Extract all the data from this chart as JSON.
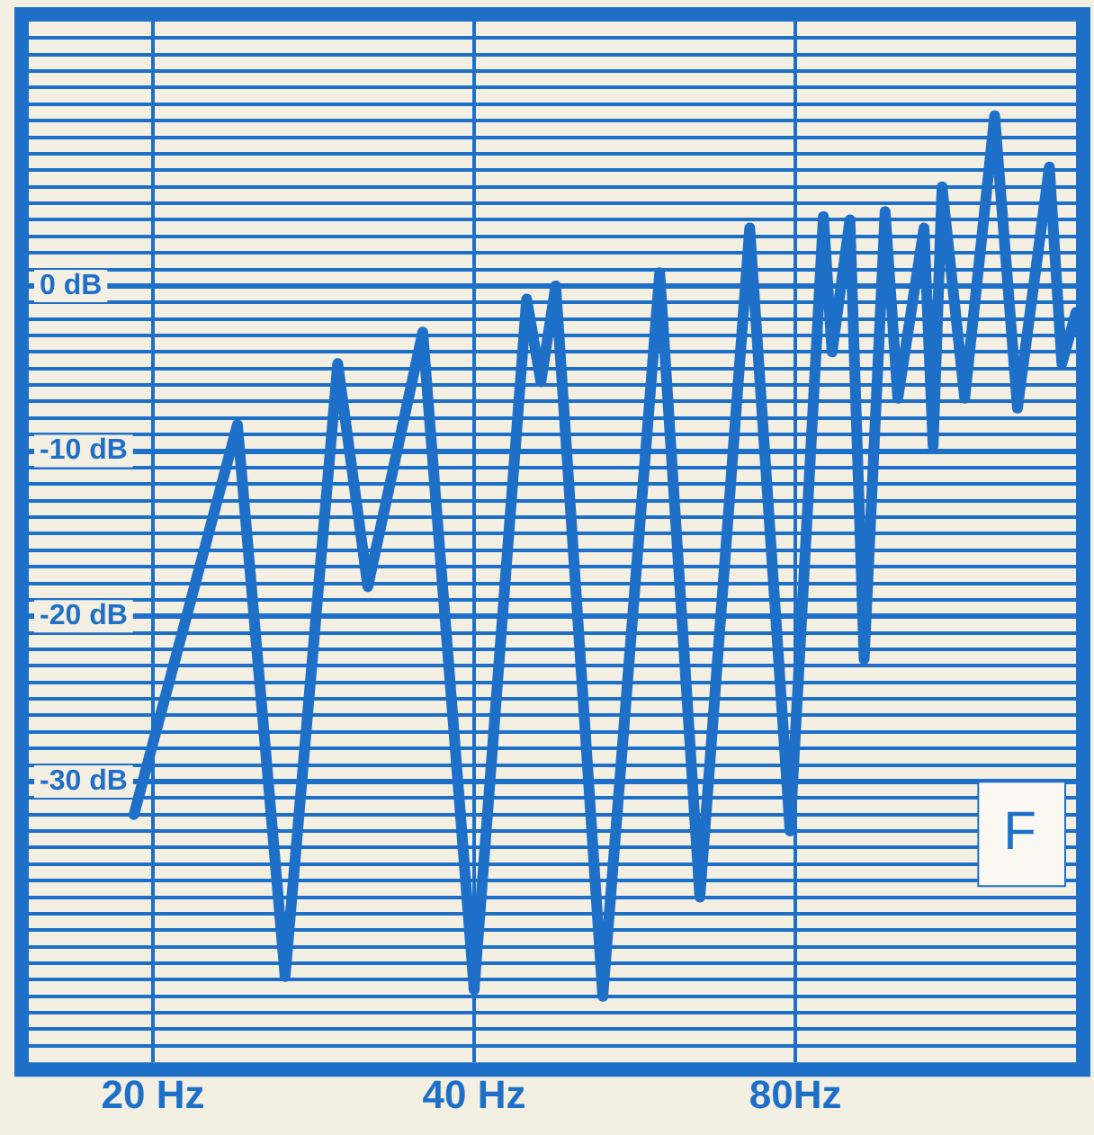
{
  "chart_data": {
    "type": "line",
    "log": "x",
    "grid": true,
    "marker": "none",
    "line_style": "solid",
    "legend": false,
    "x": [
      19.2,
      24.0,
      26.6,
      29.8,
      31.8,
      35.8,
      40.0,
      44.8,
      46.2,
      47.7,
      52.8,
      59.7,
      65.1,
      72.5,
      79.1,
      85.0,
      86.6,
      90.0,
      92.8,
      97.1,
      99.8,
      105.6,
      107.7,
      109.8,
      115.3,
      123.0,
      129.2,
      138.4,
      142.2,
      146.6
    ],
    "series": [
      {
        "color": "#1e6fc8",
        "values": [
          -32,
          -8.4,
          -41.8,
          -4.7,
          -18.2,
          -2.8,
          -42.6,
          -0.8,
          -5.8,
          0,
          -43,
          0.8,
          -37,
          3.5,
          -33,
          4.2,
          -4,
          4,
          -22.6,
          4.5,
          -6.8,
          3.5,
          -9.7,
          6,
          -6.8,
          10.3,
          -7.4,
          7.2,
          -4.7,
          -1.6
        ]
      }
    ],
    "xlim": [
      15.3,
      146.6
    ],
    "ylim": [
      -47,
      16
    ],
    "xticks": [
      {
        "value": 20,
        "label": "20 Hz"
      },
      {
        "value": 40,
        "label": "40 Hz"
      },
      {
        "value": 80,
        "label": "80Hz"
      }
    ],
    "yticks": [
      {
        "value": 15,
        "label": null
      },
      {
        "value": 14,
        "label": null
      },
      {
        "value": 13,
        "label": null
      },
      {
        "value": 12,
        "label": null
      },
      {
        "value": 11,
        "label": null
      },
      {
        "value": 10,
        "label": null
      },
      {
        "value": 9,
        "label": null
      },
      {
        "value": 8,
        "label": null
      },
      {
        "value": 7,
        "label": null
      },
      {
        "value": 6,
        "label": null
      },
      {
        "value": 5,
        "label": null
      },
      {
        "value": 4,
        "label": null
      },
      {
        "value": 3,
        "label": null
      },
      {
        "value": 2,
        "label": null
      },
      {
        "value": 1,
        "label": null
      },
      {
        "value": 0,
        "label": "0 dB"
      },
      {
        "value": -1,
        "label": null
      },
      {
        "value": -2,
        "label": null
      },
      {
        "value": -3,
        "label": null
      },
      {
        "value": -4,
        "label": null
      },
      {
        "value": -5,
        "label": null
      },
      {
        "value": -6,
        "label": null
      },
      {
        "value": -7,
        "label": null
      },
      {
        "value": -8,
        "label": null
      },
      {
        "value": -9,
        "label": null
      },
      {
        "value": -10,
        "label": "-10 dB"
      },
      {
        "value": -11,
        "label": null
      },
      {
        "value": -12,
        "label": null
      },
      {
        "value": -13,
        "label": null
      },
      {
        "value": -14,
        "label": null
      },
      {
        "value": -15,
        "label": null
      },
      {
        "value": -16,
        "label": null
      },
      {
        "value": -17,
        "label": null
      },
      {
        "value": -18,
        "label": null
      },
      {
        "value": -19,
        "label": null
      },
      {
        "value": -20,
        "label": "-20 dB"
      },
      {
        "value": -21,
        "label": null
      },
      {
        "value": -22,
        "label": null
      },
      {
        "value": -23,
        "label": null
      },
      {
        "value": -24,
        "label": null
      },
      {
        "value": -25,
        "label": null
      },
      {
        "value": -26,
        "label": null
      },
      {
        "value": -27,
        "label": null
      },
      {
        "value": -28,
        "label": null
      },
      {
        "value": -29,
        "label": null
      },
      {
        "value": -30,
        "label": "-30 dB"
      },
      {
        "value": -31,
        "label": null
      },
      {
        "value": -32,
        "label": null
      },
      {
        "value": -33,
        "label": null
      },
      {
        "value": -34,
        "label": null
      },
      {
        "value": -35,
        "label": null
      },
      {
        "value": -36,
        "label": null
      },
      {
        "value": -37,
        "label": null
      },
      {
        "value": -38,
        "label": null
      },
      {
        "value": -39,
        "label": null
      },
      {
        "value": -40,
        "label": null
      },
      {
        "value": -41,
        "label": null
      },
      {
        "value": -42,
        "label": null
      },
      {
        "value": -43,
        "label": null
      },
      {
        "value": -44,
        "label": null
      },
      {
        "value": -45,
        "label": null
      },
      {
        "value": -46,
        "label": null
      }
    ],
    "annotations": [
      "F"
    ]
  }
}
